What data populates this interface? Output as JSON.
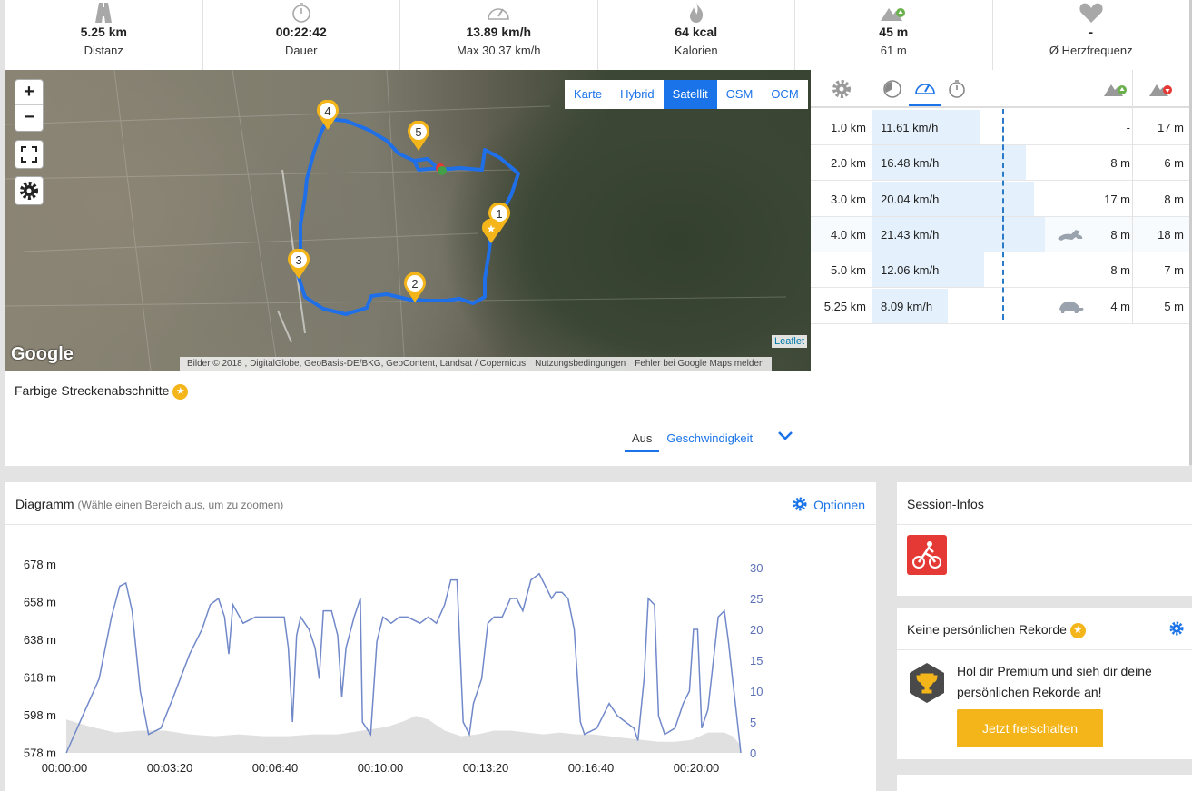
{
  "stats": [
    {
      "icon": "road-icon",
      "value": "5.25 km",
      "label": "Distanz"
    },
    {
      "icon": "stopwatch-icon",
      "value": "00:22:42",
      "label": "Dauer"
    },
    {
      "icon": "speedometer-icon",
      "value": "13.89 km/h",
      "label": "Max 30.37 km/h"
    },
    {
      "icon": "flame-icon",
      "value": "64 kcal",
      "label": "Kalorien"
    },
    {
      "icon": "mountain-up-icon",
      "value": "45 m",
      "label": "61 m"
    },
    {
      "icon": "heart-icon",
      "value": "-",
      "label": "Ø Herzfrequenz"
    }
  ],
  "map": {
    "zoom_in": "+",
    "zoom_out": "−",
    "layers": [
      "Karte",
      "Hybrid",
      "Satellit",
      "OSM",
      "OCM"
    ],
    "active_layer": "Satellit",
    "google_logo": "Google",
    "attribution": [
      "Bilder © 2018 , DigitalGlobe, GeoBasis-DE/BKG, GeoContent, Landsat / Copernicus",
      "Nutzungsbedingungen",
      "Fehler bei Google Maps melden"
    ],
    "leaflet": "Leaflet",
    "markers": [
      "1",
      "2",
      "3",
      "4",
      "5"
    ]
  },
  "sections": {
    "title": "Farbige Streckenabschnitte",
    "tabs": [
      "Aus",
      "Geschwindigkeit"
    ]
  },
  "splits": {
    "rows": [
      {
        "km": "1.0 km",
        "speed": "11.61 km/h",
        "up": "-",
        "down": "17 m",
        "fraction": 0.5,
        "marker": ""
      },
      {
        "km": "2.0 km",
        "speed": "16.48 km/h",
        "up": "8 m",
        "down": "6 m",
        "fraction": 0.71,
        "marker": ""
      },
      {
        "km": "3.0 km",
        "speed": "20.04 km/h",
        "up": "17 m",
        "down": "8 m",
        "fraction": 0.75,
        "marker": ""
      },
      {
        "km": "4.0 km",
        "speed": "21.43 km/h",
        "up": "8 m",
        "down": "18 m",
        "fraction": 0.8,
        "marker": "hare-icon"
      },
      {
        "km": "5.0 km",
        "speed": "12.06 km/h",
        "up": "8 m",
        "down": "7 m",
        "fraction": 0.52,
        "marker": ""
      },
      {
        "km": "5.25 km",
        "speed": "8.09 km/h",
        "up": "4 m",
        "down": "5 m",
        "fraction": 0.35,
        "marker": "turtle-icon"
      }
    ]
  },
  "diagram": {
    "title": "Diagramm",
    "hint": "(Wähle einen Bereich aus, um zu zoomen)",
    "options": "Optionen"
  },
  "chart_data": {
    "type": "line",
    "left_ticks": [
      "678 m",
      "658 m",
      "638 m",
      "618 m",
      "598 m",
      "578 m"
    ],
    "right_ticks": [
      "30",
      "25",
      "20",
      "15",
      "10",
      "5",
      "0"
    ],
    "x_ticks": [
      "00:00:00",
      "00:03:20",
      "00:06:40",
      "00:10:00",
      "00:13:20",
      "00:16:40",
      "00:20:00"
    ],
    "x_range_s": [
      0,
      1362
    ],
    "speed_range": [
      0,
      30
    ],
    "altitude_range": [
      578,
      678
    ],
    "colors": {
      "speed": "#7188c9",
      "altitude": "#e0e0e0"
    },
    "speed": [
      [
        0,
        0
      ],
      [
        40,
        6
      ],
      [
        80,
        12
      ],
      [
        110,
        22
      ],
      [
        130,
        27
      ],
      [
        145,
        27.5
      ],
      [
        160,
        23
      ],
      [
        180,
        10
      ],
      [
        200,
        3
      ],
      [
        230,
        4
      ],
      [
        260,
        9
      ],
      [
        300,
        16
      ],
      [
        330,
        20
      ],
      [
        350,
        24
      ],
      [
        370,
        25
      ],
      [
        385,
        22
      ],
      [
        395,
        16
      ],
      [
        405,
        24
      ],
      [
        430,
        21
      ],
      [
        460,
        22
      ],
      [
        500,
        22
      ],
      [
        530,
        22
      ],
      [
        540,
        17
      ],
      [
        550,
        5
      ],
      [
        560,
        19
      ],
      [
        570,
        22
      ],
      [
        590,
        20
      ],
      [
        605,
        17
      ],
      [
        615,
        12
      ],
      [
        625,
        23
      ],
      [
        645,
        23
      ],
      [
        660,
        19
      ],
      [
        670,
        9
      ],
      [
        680,
        17
      ],
      [
        700,
        22
      ],
      [
        715,
        25
      ],
      [
        720,
        5
      ],
      [
        740,
        3
      ],
      [
        755,
        18
      ],
      [
        770,
        22
      ],
      [
        790,
        21
      ],
      [
        810,
        22
      ],
      [
        830,
        22
      ],
      [
        860,
        21
      ],
      [
        880,
        22
      ],
      [
        900,
        21
      ],
      [
        920,
        24
      ],
      [
        935,
        28
      ],
      [
        950,
        28
      ],
      [
        965,
        5
      ],
      [
        980,
        3
      ],
      [
        990,
        8
      ],
      [
        1010,
        12
      ],
      [
        1025,
        21
      ],
      [
        1040,
        22
      ],
      [
        1060,
        22
      ],
      [
        1080,
        25
      ],
      [
        1095,
        25
      ],
      [
        1110,
        23
      ],
      [
        1130,
        28
      ],
      [
        1150,
        29
      ],
      [
        1165,
        27
      ],
      [
        1180,
        25
      ],
      [
        1190,
        26
      ],
      [
        1205,
        26
      ],
      [
        1220,
        25
      ],
      [
        1235,
        20
      ],
      [
        1250,
        5
      ],
      [
        1260,
        3
      ],
      [
        1290,
        4
      ],
      [
        1320,
        8
      ],
      [
        1340,
        6
      ],
      [
        1360,
        5
      ],
      [
        1380,
        4
      ],
      [
        1390,
        2
      ],
      [
        1405,
        12
      ],
      [
        1415,
        25
      ],
      [
        1430,
        24
      ],
      [
        1440,
        6
      ],
      [
        1455,
        3
      ],
      [
        1480,
        4
      ],
      [
        1500,
        8
      ],
      [
        1515,
        10
      ],
      [
        1525,
        20
      ],
      [
        1535,
        20
      ],
      [
        1545,
        4
      ],
      [
        1560,
        7
      ],
      [
        1575,
        16
      ],
      [
        1585,
        22
      ],
      [
        1600,
        23
      ],
      [
        1610,
        18
      ],
      [
        1620,
        12
      ],
      [
        1630,
        6
      ],
      [
        1640,
        0
      ]
    ],
    "altitude": [
      [
        0,
        596
      ],
      [
        60,
        592
      ],
      [
        120,
        589
      ],
      [
        180,
        590
      ],
      [
        240,
        590
      ],
      [
        300,
        588
      ],
      [
        360,
        587
      ],
      [
        420,
        588
      ],
      [
        480,
        587
      ],
      [
        540,
        587
      ],
      [
        600,
        588
      ],
      [
        660,
        588
      ],
      [
        720,
        590
      ],
      [
        780,
        592
      ],
      [
        820,
        595
      ],
      [
        850,
        598
      ],
      [
        880,
        596
      ],
      [
        920,
        590
      ],
      [
        960,
        587
      ],
      [
        1000,
        588
      ],
      [
        1040,
        590
      ],
      [
        1080,
        590
      ],
      [
        1120,
        589
      ],
      [
        1160,
        588
      ],
      [
        1200,
        589
      ],
      [
        1240,
        588
      ],
      [
        1280,
        588
      ],
      [
        1320,
        587
      ],
      [
        1360,
        586
      ],
      [
        1400,
        585
      ],
      [
        1440,
        584
      ],
      [
        1480,
        584
      ],
      [
        1520,
        585
      ],
      [
        1560,
        589
      ],
      [
        1600,
        589
      ],
      [
        1620,
        587
      ],
      [
        1640,
        582
      ]
    ]
  },
  "session": {
    "title": "Session-Infos",
    "sport_icon": "cycling-icon"
  },
  "records": {
    "title": "Keine persönlichen Rekorde",
    "text": "Hol dir Premium und sieh dir deine persönlichen Rekorde an!",
    "button": "Jetzt freischalten"
  }
}
